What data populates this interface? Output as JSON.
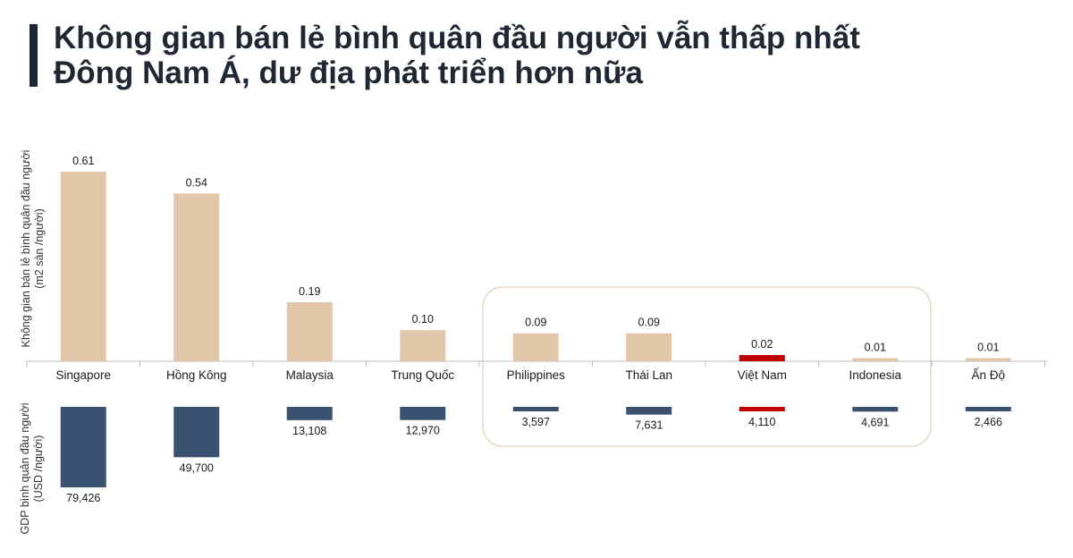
{
  "title_lines": [
    "Không gian bán lẻ bình quân đầu người vẫn thấp nhất",
    "Đông Nam Á, dư địa phát triển hơn nữa"
  ],
  "colors": {
    "retail_bar": "#e2c6aa",
    "gdp_bar": "#3a5270",
    "highlight": "#c00000",
    "axis": "#bdbdbd",
    "callout_border": "#e4d9c6",
    "title_accent": "#1c2536"
  },
  "chart_data": [
    {
      "type": "bar",
      "categories": [
        "Singapore",
        "Hồng Kông",
        "Malaysia",
        "Trung Quốc",
        "Philippines",
        "Thái Lan",
        "Việt Nam",
        "Indonesia",
        "Ấn Độ"
      ],
      "ylabel_lines": [
        "Không gian bán lẻ bình quân đầu người",
        "(m2 sàn /người)"
      ],
      "values": [
        0.61,
        0.54,
        0.19,
        0.1,
        0.09,
        0.09,
        0.02,
        0.01,
        0.01
      ],
      "value_labels": [
        "0.61",
        "0.54",
        "0.19",
        "0.10",
        "0.09",
        "0.09",
        "0.02",
        "0.01",
        "0.01"
      ],
      "highlight_category": "Việt Nam",
      "ylim": [
        0,
        0.61
      ]
    },
    {
      "type": "bar",
      "orientation": "downward",
      "categories": [
        "Singapore",
        "Hồng Kông",
        "Malaysia",
        "Trung Quốc",
        "Philippines",
        "Thái Lan",
        "Việt Nam",
        "Indonesia",
        "Ấn Độ"
      ],
      "ylabel_lines": [
        "GDP bình quân đầu người",
        "(USD /người)"
      ],
      "values": [
        79426,
        49700,
        13108,
        12970,
        3597,
        7631,
        4110,
        4691,
        2466
      ],
      "value_labels": [
        "79,426",
        "49,700",
        "13,108",
        "12,970",
        "3,597",
        "7,631",
        "4,110",
        "4,691",
        "2,466"
      ],
      "highlight_category": "Việt Nam",
      "ylim": [
        0,
        79426
      ]
    }
  ],
  "callout_categories": [
    "Philippines",
    "Thái Lan",
    "Việt Nam",
    "Indonesia"
  ]
}
